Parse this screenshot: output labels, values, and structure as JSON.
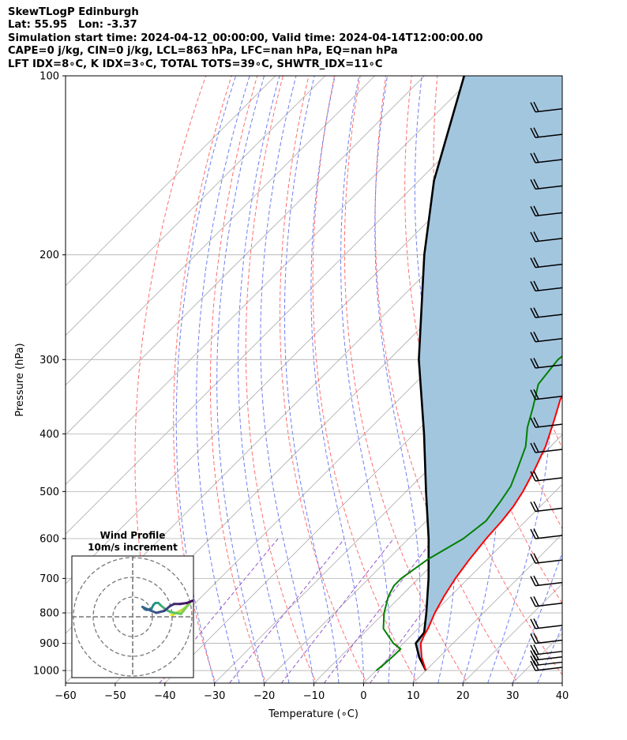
{
  "header": {
    "title": "SkewTLogP Edinburgh",
    "location": "Lat: 55.95   Lon: -3.37",
    "times": "Simulation start time: 2024-04-12_00:00:00, Valid time: 2024-04-14T12:00:00.00",
    "indices_1": "CAPE=0 j/kg, CIN=0 j/kg, LCL=863 hPa, LFC=nan hPa, EQ=nan hPa",
    "indices_2": "LFT IDX=8∘C, K IDX=3∘C, TOTAL TOTS=39∘C, SHWTR_IDX=11∘C"
  },
  "chart_data": [
    {
      "type": "line",
      "subtype": "skew-t log-p sounding",
      "xlabel": "Temperature (∘C)",
      "ylabel": "Pressure (hPa)",
      "xlim": [
        -60,
        40
      ],
      "ylim": [
        1050,
        100
      ],
      "y_scale": "log",
      "x_ticks": [
        -60,
        -50,
        -40,
        -30,
        -20,
        -10,
        0,
        10,
        20,
        30,
        40
      ],
      "y_ticks": [
        100,
        200,
        300,
        400,
        500,
        600,
        700,
        800,
        900,
        1000
      ],
      "grid": true,
      "colors": {
        "temperature": "#ff0000",
        "dewpoint": "#008000",
        "parcel": "#000000",
        "fill": "#a3c6df",
        "dry_adiabats": "#ff5555",
        "moist_adiabats": "#5566ee",
        "mixing_ratio": "#9955cc",
        "isotherms": "#aaaaaa"
      },
      "series": [
        {
          "role": "temperature",
          "pressure": [
            1000,
            950,
            900,
            870,
            850,
            800,
            750,
            700,
            650,
            600,
            560,
            530,
            500,
            460,
            420,
            380,
            350,
            330,
            310,
            300,
            285,
            270,
            250,
            230,
            215,
            200,
            180,
            160,
            140,
            120,
            100
          ],
          "values": [
            10.0,
            6.5,
            3.5,
            2.5,
            2.0,
            0.2,
            -1.3,
            -2.6,
            -3.6,
            -4.4,
            -4.8,
            -5.4,
            -6.5,
            -8.5,
            -11.0,
            -14.5,
            -17.5,
            -19.0,
            -18.5,
            -16.5,
            -15.0,
            -14.0,
            -13.0,
            -13.0,
            -13.5,
            -14.0,
            -15.5,
            -18.0,
            -20.5,
            -24.0,
            -28.0
          ]
        },
        {
          "role": "dewpoint",
          "pressure": [
            1000,
            980,
            950,
            920,
            900,
            850,
            800,
            750,
            720,
            700,
            650,
            600,
            560,
            520,
            490,
            460,
            420,
            390,
            360,
            330,
            300,
            290,
            270,
            250,
            235,
            220,
            200,
            185,
            170,
            150,
            130,
            100
          ],
          "values": [
            0.0,
            0.3,
            0.5,
            0.6,
            -2.0,
            -7.0,
            -10.0,
            -12.5,
            -13.5,
            -13.5,
            -12.0,
            -9.0,
            -8.0,
            -9.0,
            -10.0,
            -12.0,
            -15.0,
            -18.5,
            -21.5,
            -25.0,
            -26.0,
            -25.5,
            -23.5,
            -24.0,
            -27.0,
            -32.0,
            -38.0,
            -40.0,
            -42.0,
            -46.0,
            -52.0,
            -62.0
          ]
        },
        {
          "role": "parcel",
          "pressure": [
            1000,
            950,
            900,
            863,
            800,
            700,
            600,
            500,
            400,
            300,
            250,
            200,
            150,
            100
          ],
          "values": [
            10.0,
            6.0,
            2.5,
            2.0,
            -1.5,
            -8.0,
            -16.0,
            -26.0,
            -38.0,
            -54.0,
            -63.0,
            -74.0,
            -87.0,
            -102.0
          ]
        }
      ],
      "wind_barbs": {
        "pressure": [
          1000,
          980,
          960,
          940,
          900,
          850,
          780,
          720,
          660,
          600,
          540,
          480,
          430,
          390,
          350,
          310,
          280,
          255,
          230,
          210,
          190,
          172,
          155,
          140,
          127,
          115
        ]
      }
    },
    {
      "type": "line",
      "subtype": "hodograph",
      "title": "Wind Profile",
      "subtitle": "10m/s increment",
      "ring_speeds": [
        10,
        20,
        30
      ],
      "series": [
        {
          "role": "wind_trace",
          "u": [
            19.5,
            20.5,
            22.0,
            25.0,
            27.5,
            29.0,
            24.5,
            21.0,
            19.0,
            17.0,
            14.0,
            13.0,
            11.5,
            10.5,
            9.5,
            7.0,
            6.0,
            5.0,
            7.0,
            12.0,
            16.0,
            19.0,
            21.0,
            24.0,
            27.5,
            30.0,
            32.0
          ],
          "v": [
            1.0,
            1.0,
            2.0,
            3.5,
            5.5,
            7.0,
            1.5,
            2.0,
            2.5,
            3.5,
            6.0,
            7.0,
            7.0,
            6.0,
            4.0,
            3.5,
            4.0,
            5.0,
            4.0,
            2.0,
            3.0,
            5.5,
            6.5,
            6.5,
            7.0,
            8.0,
            8.5
          ]
        }
      ]
    }
  ]
}
